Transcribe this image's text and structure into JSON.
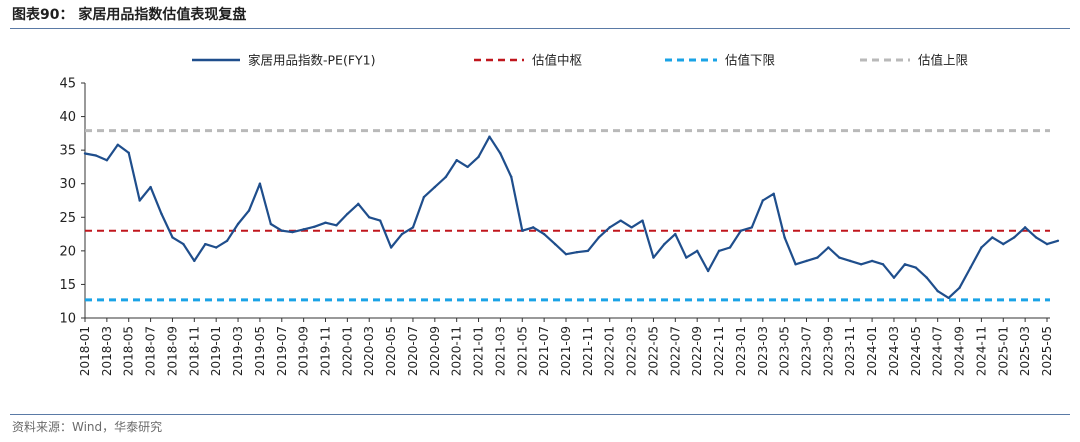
{
  "header": {
    "title": "图表90：  家居用品指数估值表现复盘"
  },
  "footer": {
    "source": "资料来源：Wind，华泰研究"
  },
  "chart_data": {
    "type": "line",
    "title": "图表90：  家居用品指数估值表现复盘",
    "xlabel": "",
    "ylabel": "",
    "ylim": [
      10,
      45
    ],
    "yticks": [
      10,
      15,
      20,
      25,
      30,
      35,
      40,
      45
    ],
    "grid": false,
    "legend_position": "top",
    "x_ticks": [
      "2018-01",
      "2018-03",
      "2018-05",
      "2018-07",
      "2018-09",
      "2018-11",
      "2019-01",
      "2019-03",
      "2019-05",
      "2019-07",
      "2019-09",
      "2019-11",
      "2020-01",
      "2020-03",
      "2020-05",
      "2020-07",
      "2020-09",
      "2020-11",
      "2021-01",
      "2021-03",
      "2021-05",
      "2021-07",
      "2021-09",
      "2021-11",
      "2022-01",
      "2022-03",
      "2022-05",
      "2022-07",
      "2022-09",
      "2022-11",
      "2023-01",
      "2023-03",
      "2023-05",
      "2023-07",
      "2023-09",
      "2023-11",
      "2024-01",
      "2024-03",
      "2024-05",
      "2024-07",
      "2024-09",
      "2024-11",
      "2025-01",
      "2025-03",
      "2025-05"
    ],
    "series": [
      {
        "name": "家居用品指数-PE(FY1)",
        "style": "solid",
        "color": "#1f4e8c",
        "months": [
          "2018-01",
          "2018-02",
          "2018-03",
          "2018-04",
          "2018-05",
          "2018-06",
          "2018-07",
          "2018-08",
          "2018-09",
          "2018-10",
          "2018-11",
          "2018-12",
          "2019-01",
          "2019-02",
          "2019-03",
          "2019-04",
          "2019-05",
          "2019-06",
          "2019-07",
          "2019-08",
          "2019-09",
          "2019-10",
          "2019-11",
          "2019-12",
          "2020-01",
          "2020-02",
          "2020-03",
          "2020-04",
          "2020-05",
          "2020-06",
          "2020-07",
          "2020-08",
          "2020-09",
          "2020-10",
          "2020-11",
          "2020-12",
          "2021-01",
          "2021-02",
          "2021-03",
          "2021-04",
          "2021-05",
          "2021-06",
          "2021-07",
          "2021-08",
          "2021-09",
          "2021-10",
          "2021-11",
          "2021-12",
          "2022-01",
          "2022-02",
          "2022-03",
          "2022-04",
          "2022-05",
          "2022-06",
          "2022-07",
          "2022-08",
          "2022-09",
          "2022-10",
          "2022-11",
          "2022-12",
          "2023-01",
          "2023-02",
          "2023-03",
          "2023-04",
          "2023-05",
          "2023-06",
          "2023-07",
          "2023-08",
          "2023-09",
          "2023-10",
          "2023-11",
          "2023-12",
          "2024-01",
          "2024-02",
          "2024-03",
          "2024-04",
          "2024-05",
          "2024-06",
          "2024-07",
          "2024-08",
          "2024-09",
          "2024-10",
          "2024-11",
          "2024-12",
          "2025-01",
          "2025-02",
          "2025-03",
          "2025-04",
          "2025-05",
          "2025-06"
        ],
        "values": [
          34.5,
          34.2,
          33.5,
          35.8,
          34.6,
          27.5,
          29.5,
          25.5,
          22.0,
          21.0,
          18.5,
          21.0,
          20.5,
          21.5,
          24.0,
          26.0,
          30.0,
          24.0,
          23.0,
          22.8,
          23.2,
          23.6,
          24.2,
          23.8,
          25.5,
          27.0,
          25.0,
          24.5,
          20.5,
          22.5,
          23.5,
          28.0,
          29.5,
          31.0,
          33.5,
          32.5,
          34.0,
          37.0,
          34.5,
          31.0,
          23.0,
          23.5,
          22.5,
          21.0,
          19.5,
          19.8,
          20.0,
          22.0,
          23.5,
          24.5,
          23.5,
          24.5,
          19.0,
          21.0,
          22.5,
          19.0,
          20.0,
          17.0,
          20.0,
          20.5,
          23.0,
          23.5,
          27.5,
          28.5,
          22.0,
          18.0,
          18.5,
          19.0,
          20.5,
          19.0,
          18.5,
          18.0,
          18.5,
          18.0,
          16.0,
          18.0,
          17.5,
          16.0,
          14.0,
          13.0,
          14.5,
          17.5,
          20.5,
          22.0,
          21.0,
          22.0,
          23.5,
          22.0,
          21.0,
          21.5
        ]
      },
      {
        "name": "估值中枢",
        "style": "dashed",
        "color": "#c0161d",
        "value": 23.0
      },
      {
        "name": "估值下限",
        "style": "dashed",
        "color": "#1aa3e6",
        "value": 12.7
      },
      {
        "name": "估值上限",
        "style": "dashed",
        "color": "#b9b9b9",
        "value": 37.9
      }
    ]
  }
}
